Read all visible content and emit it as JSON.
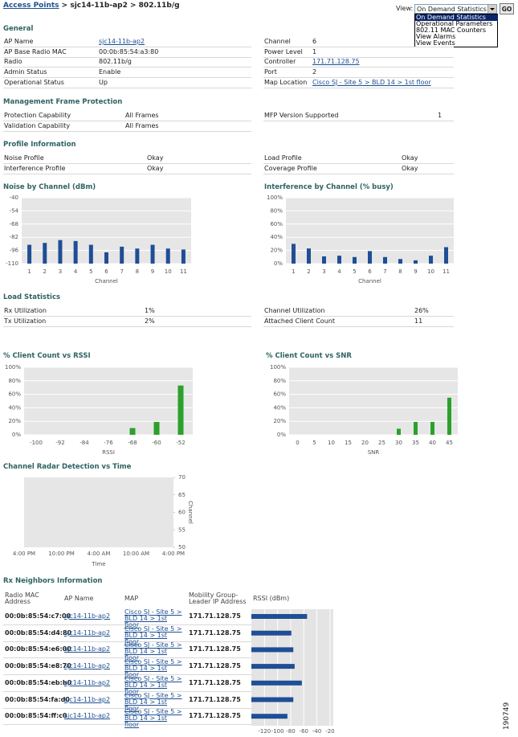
{
  "breadcrumb": {
    "link": "Access Points",
    "trail": "> sjc14-11b-ap2 > 802.11b/g"
  },
  "view": {
    "label": "View:",
    "selected": "On Demand Statistics",
    "button": "GO",
    "options": [
      "On Demand Statistics",
      "Operational Parameters",
      "802.11 MAC Counters",
      "View Alarms",
      "View Events"
    ]
  },
  "sections": {
    "general": {
      "title": "General",
      "left": [
        {
          "label": "AP Name",
          "value": "sjc14-11b-ap2",
          "link": true
        },
        {
          "label": "AP Base Radio MAC",
          "value": "00:0b:85:54:a3:80"
        },
        {
          "label": "Radio",
          "value": "802.11b/g"
        },
        {
          "label": "Admin Status",
          "value": "Enable"
        },
        {
          "label": "Operational Status",
          "value": "Up"
        }
      ],
      "right": [
        {
          "label": "Channel",
          "value": "6"
        },
        {
          "label": "Power Level",
          "value": "1"
        },
        {
          "label": "Controller",
          "value": "171.71.128.75",
          "link": true
        },
        {
          "label": "Port",
          "value": "2"
        },
        {
          "label": "Map Location",
          "value": "Cisco SJ - Site 5 > BLD 14 > 1st floor",
          "link": true
        }
      ]
    },
    "mfp": {
      "title": "Management Frame Protection",
      "left": [
        {
          "label": "Protection Capability",
          "value": "All Frames"
        },
        {
          "label": "Validation Capability",
          "value": "All Frames"
        }
      ],
      "right": [
        {
          "label": "MFP Version Supported",
          "value": "1"
        }
      ]
    },
    "profile": {
      "title": "Profile Information",
      "left": [
        {
          "label": "Noise Profile",
          "value": "Okay"
        },
        {
          "label": "Interference Profile",
          "value": "Okay"
        }
      ],
      "right": [
        {
          "label": "Load Profile",
          "value": "Okay"
        },
        {
          "label": "Coverage Profile",
          "value": "Okay"
        }
      ]
    },
    "load": {
      "title": "Load Statistics",
      "left": [
        {
          "label": "Rx Utilization",
          "value": "1%"
        },
        {
          "label": "Tx Utilization",
          "value": "2%"
        }
      ],
      "right": [
        {
          "label": "Channel Utilization",
          "value": "26%"
        },
        {
          "label": "Attached Client Count",
          "value": "11"
        }
      ]
    }
  },
  "chart_data": [
    {
      "type": "bar",
      "title": "Noise by Channel (dBm)",
      "categories": [
        "1",
        "2",
        "3",
        "4",
        "5",
        "6",
        "7",
        "8",
        "9",
        "10",
        "11"
      ],
      "values": [
        -90,
        -88,
        -85,
        -86,
        -90,
        -98,
        -92,
        -94,
        -90,
        -94,
        -95
      ],
      "color": "#1f4e96",
      "ylim": [
        -110,
        -40
      ],
      "yticks": [
        -110,
        -96,
        -82,
        -68,
        -54,
        -40
      ],
      "grid": true,
      "xlabel": "Channel"
    },
    {
      "type": "bar",
      "title": "Interference by Channel (% busy)",
      "categories": [
        "1",
        "2",
        "3",
        "4",
        "5",
        "6",
        "7",
        "8",
        "9",
        "10",
        "11"
      ],
      "values": [
        30,
        23,
        11,
        12,
        10,
        19,
        10,
        7,
        5,
        12,
        25
      ],
      "color": "#1f4e96",
      "ylim": [
        0,
        100
      ],
      "yticks": [
        {
          "value": 0,
          "label": "0%"
        },
        {
          "value": 20,
          "label": "20%"
        },
        {
          "value": 40,
          "label": "40%"
        },
        {
          "value": 60,
          "label": "60%"
        },
        {
          "value": 80,
          "label": "80%"
        },
        {
          "value": 100,
          "label": "100%"
        }
      ],
      "grid": true,
      "xlabel": "Channel"
    },
    {
      "type": "bar",
      "title": "% Client Count vs RSSI",
      "categories": [
        "-100",
        "-92",
        "-84",
        "-76",
        "-68",
        "-60",
        "-52"
      ],
      "values": [
        0,
        0,
        0,
        0,
        10,
        19,
        73
      ],
      "color": "#2ca02c",
      "ylim": [
        0,
        100
      ],
      "yticks": [
        {
          "value": 0,
          "label": "0%"
        },
        {
          "value": 20,
          "label": "20%"
        },
        {
          "value": 40,
          "label": "40%"
        },
        {
          "value": 60,
          "label": "60%"
        },
        {
          "value": 80,
          "label": "80%"
        },
        {
          "value": 100,
          "label": "100%"
        }
      ],
      "grid": true,
      "xlabel": "RSSI"
    },
    {
      "type": "bar",
      "title": "% Client Count vs SNR",
      "categories": [
        "0",
        "5",
        "10",
        "15",
        "20",
        "25",
        "30",
        "35",
        "40",
        "45"
      ],
      "values": [
        0,
        0,
        0,
        0,
        0,
        0,
        9,
        19,
        19,
        55
      ],
      "color": "#2ca02c",
      "ylim": [
        0,
        100
      ],
      "yticks": [
        {
          "value": 0,
          "label": "0%"
        },
        {
          "value": 20,
          "label": "20%"
        },
        {
          "value": 40,
          "label": "40%"
        },
        {
          "value": 60,
          "label": "60%"
        },
        {
          "value": 80,
          "label": "80%"
        },
        {
          "value": 100,
          "label": "100%"
        }
      ],
      "grid": true,
      "xlabel": "SNR"
    },
    {
      "type": "line",
      "title": "Channel Radar Detection vs Time",
      "categories": [
        "4:00 PM",
        "10:00 PM",
        "4:00 AM",
        "10:00 AM",
        "4:00 PM"
      ],
      "series": [],
      "y2lim": [
        50,
        70
      ],
      "y2ticks": [
        50,
        55,
        60,
        65,
        70
      ],
      "grid": false,
      "xlabel": "Time",
      "y2label": "Channel"
    }
  ],
  "neighbors": {
    "title": "Rx Neighbors Information",
    "headers": [
      "Radio MAC Address",
      "AP Name",
      "MAP",
      "Mobility Group-Leader IP Address",
      "RSSI (dBm)"
    ],
    "rows": [
      {
        "mac": "00:0b:85:54:c7:00",
        "ap": "sjc14-11b-ap2",
        "map": "Cisco SJ - Site 5 > BLD 14 > 1st floor",
        "ip": "171.71.128.75",
        "rssi": -55
      },
      {
        "mac": "00:0b:85:54:d4:80",
        "ap": "sjc14-11b-ap2",
        "map": "Cisco SJ - Site 5 > BLD 14 > 1st floor",
        "ip": "171.71.128.75",
        "rssi": -79
      },
      {
        "mac": "00:0b:85:54:e6:00",
        "ap": "sjc14-11b-ap2",
        "map": "Cisco SJ - Site 5 > BLD 14 > 1st floor",
        "ip": "171.71.128.75",
        "rssi": -76
      },
      {
        "mac": "00:0b:85:54:e8:70",
        "ap": "sjc14-11b-ap2",
        "map": "Cisco SJ - Site 5 > BLD 14 > 1st floor",
        "ip": "171.71.128.75",
        "rssi": -74
      },
      {
        "mac": "00:0b:85:54:eb:b0",
        "ap": "sjc14-11b-ap2",
        "map": "Cisco SJ - Site 5 > BLD 14 > 1st floor",
        "ip": "171.71.128.75",
        "rssi": -63
      },
      {
        "mac": "00:0b:85:54:fa:d0",
        "ap": "sjc14-11b-ap2",
        "map": "Cisco SJ - Site 5 > BLD 14 > 1st floor",
        "ip": "171.71.128.75",
        "rssi": -76
      },
      {
        "mac": "00:0b:85:54:ff:c0",
        "ap": "sjc14-11b-ap2",
        "map": "Cisco SJ - Site 5 > BLD 14 > 1st floor",
        "ip": "171.71.128.75",
        "rssi": -85
      }
    ],
    "color": "#1f4e96",
    "xlim": [
      -140,
      -15
    ],
    "xticks": [
      -120,
      -100,
      -80,
      -60,
      -40,
      -20
    ]
  },
  "figure_id": "190749"
}
